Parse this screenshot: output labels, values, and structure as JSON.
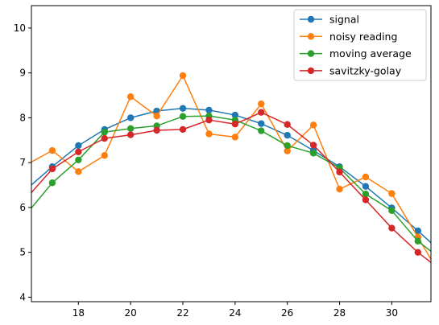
{
  "chart_data": {
    "type": "line",
    "title": "",
    "xlabel": "",
    "ylabel": "",
    "xlim": [
      16.2,
      31.5
    ],
    "ylim": [
      3.9,
      10.5
    ],
    "xticks": [
      18,
      20,
      22,
      24,
      26,
      28,
      30
    ],
    "yticks": [
      4,
      5,
      6,
      7,
      8,
      9,
      10
    ],
    "grid": false,
    "legend_position": "top-right",
    "x": [
      17,
      18,
      19,
      20,
      21,
      22,
      23,
      24,
      25,
      26,
      27,
      28,
      29,
      30,
      31
    ],
    "series": [
      {
        "name": "signal",
        "color": "#1f77b4",
        "left": [
          16,
          6.4
        ],
        "values": [
          6.91,
          7.38,
          7.74,
          8.0,
          8.15,
          8.21,
          8.17,
          8.06,
          7.87,
          7.61,
          7.27,
          6.91,
          6.47,
          5.99,
          5.48
        ],
        "right": [
          32,
          4.95
        ]
      },
      {
        "name": "noisy reading",
        "color": "#ff7f0e",
        "left": [
          16,
          6.95
        ],
        "values": [
          7.27,
          6.8,
          7.16,
          8.47,
          8.04,
          8.94,
          7.64,
          7.57,
          8.31,
          7.26,
          7.84,
          6.41,
          6.68,
          6.31,
          5.34
        ],
        "right": [
          32,
          4.35
        ]
      },
      {
        "name": "moving average",
        "color": "#2ca02c",
        "left": [
          16,
          5.85
        ],
        "values": [
          6.55,
          7.06,
          7.68,
          7.76,
          7.82,
          8.03,
          8.04,
          7.95,
          7.71,
          7.38,
          7.21,
          6.88,
          6.3,
          5.93,
          5.25
        ],
        "right": [
          32,
          4.8
        ]
      },
      {
        "name": "savitzky-golay",
        "color": "#d62728",
        "left": [
          16,
          6.2
        ],
        "values": [
          6.86,
          7.24,
          7.54,
          7.62,
          7.72,
          7.74,
          7.95,
          7.86,
          8.12,
          7.85,
          7.39,
          6.79,
          6.17,
          5.54,
          5.0
        ],
        "right": [
          32,
          4.55
        ]
      }
    ]
  }
}
